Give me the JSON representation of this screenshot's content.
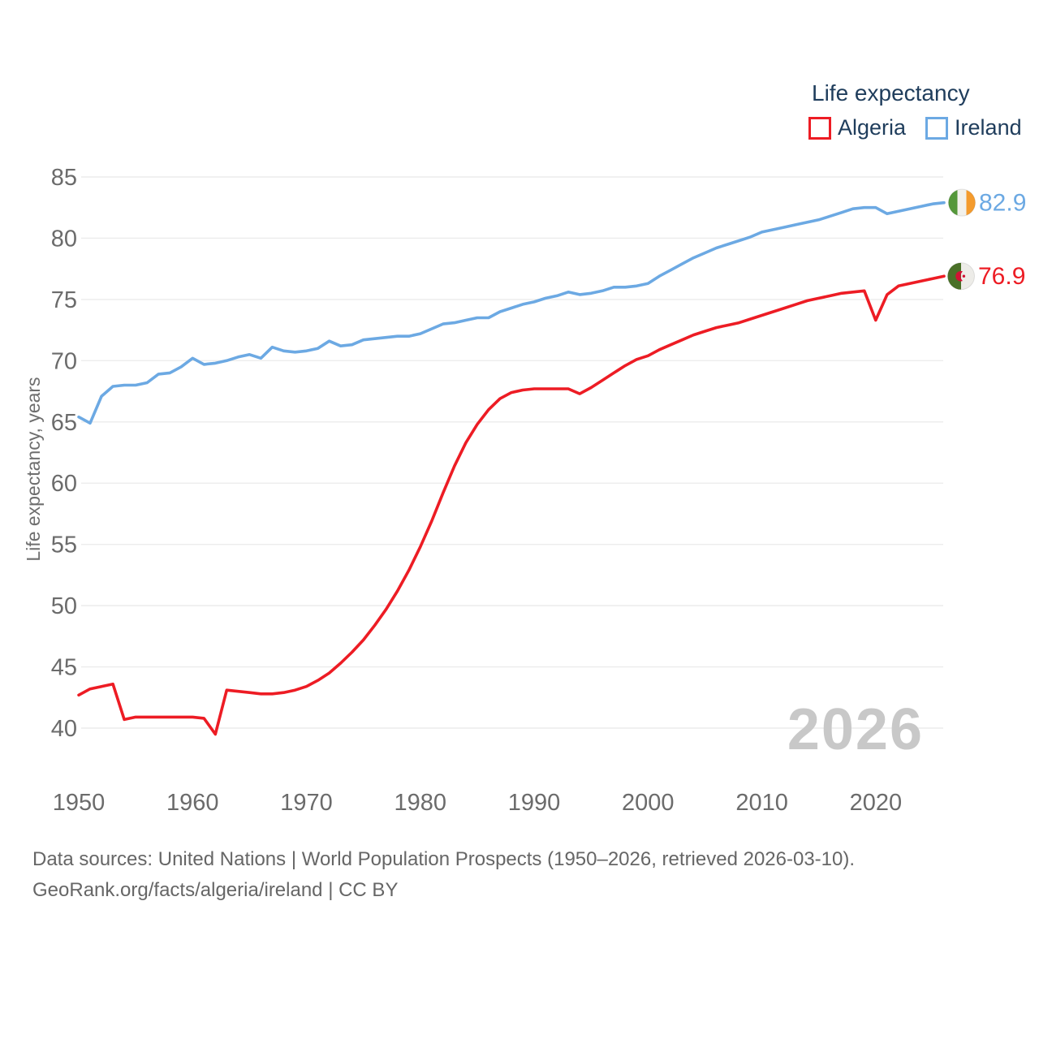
{
  "legend": {
    "title": "Life expectancy",
    "items": [
      {
        "label": "Algeria",
        "color": "#ed1c24"
      },
      {
        "label": "Ireland",
        "color": "#6ca9e3"
      }
    ]
  },
  "y_axis": {
    "title": "Life expectancy, years",
    "ticks": [
      40,
      45,
      50,
      55,
      60,
      65,
      70,
      75,
      80,
      85
    ]
  },
  "x_axis": {
    "ticks": [
      1950,
      1960,
      1970,
      1980,
      1990,
      2000,
      2010,
      2020
    ]
  },
  "watermark": "2026",
  "end_labels": {
    "ireland": {
      "value": "82.9",
      "color": "#6ca9e3"
    },
    "algeria": {
      "value": "76.9",
      "color": "#ed1c24"
    }
  },
  "flags": {
    "ireland": {
      "green": "#55983a",
      "white": "#f2f1ec",
      "orange": "#f49b2d"
    },
    "algeria": {
      "green": "#4a7028",
      "white": "#edece8",
      "red": "#d21034"
    }
  },
  "footer": {
    "line1": "Data sources: United Nations | World Population Prospects (1950–2026, retrieved 2026-03-10).",
    "line2": "GeoRank.org/facts/algeria/ireland | CC BY"
  },
  "chart_data": {
    "type": "line",
    "title": "Life expectancy",
    "ylabel": "Life expectancy, years",
    "xlabel": "",
    "x_range": [
      1950,
      2026
    ],
    "ylim": [
      40,
      85
    ],
    "grid": true,
    "legend_position": "top-right",
    "years": [
      1950,
      1951,
      1952,
      1953,
      1954,
      1955,
      1956,
      1957,
      1958,
      1959,
      1960,
      1961,
      1962,
      1963,
      1964,
      1965,
      1966,
      1967,
      1968,
      1969,
      1970,
      1971,
      1972,
      1973,
      1974,
      1975,
      1976,
      1977,
      1978,
      1979,
      1980,
      1981,
      1982,
      1983,
      1984,
      1985,
      1986,
      1987,
      1988,
      1989,
      1990,
      1991,
      1992,
      1993,
      1994,
      1995,
      1996,
      1997,
      1998,
      1999,
      2000,
      2001,
      2002,
      2003,
      2004,
      2005,
      2006,
      2007,
      2008,
      2009,
      2010,
      2011,
      2012,
      2013,
      2014,
      2015,
      2016,
      2017,
      2018,
      2019,
      2020,
      2021,
      2022,
      2023,
      2024,
      2025,
      2026
    ],
    "series": [
      {
        "name": "Algeria",
        "color": "#ed1c24",
        "final_value": 76.9,
        "values": [
          42.7,
          43.2,
          43.4,
          43.6,
          40.7,
          40.9,
          40.9,
          40.9,
          40.9,
          40.9,
          40.9,
          40.8,
          39.5,
          43.1,
          43.0,
          42.9,
          42.8,
          42.8,
          42.9,
          43.1,
          43.4,
          43.9,
          44.5,
          45.3,
          46.2,
          47.2,
          48.4,
          49.7,
          51.2,
          52.9,
          54.8,
          56.9,
          59.2,
          61.4,
          63.3,
          64.8,
          66.0,
          66.9,
          67.4,
          67.6,
          67.7,
          67.7,
          67.7,
          67.7,
          67.3,
          67.8,
          68.4,
          69.0,
          69.6,
          70.1,
          70.4,
          70.9,
          71.3,
          71.7,
          72.1,
          72.4,
          72.7,
          72.9,
          73.1,
          73.4,
          73.7,
          74.0,
          74.3,
          74.6,
          74.9,
          75.1,
          75.3,
          75.5,
          75.6,
          75.7,
          73.3,
          75.4,
          76.1,
          76.3,
          76.5,
          76.7,
          76.9
        ]
      },
      {
        "name": "Ireland",
        "color": "#6ca9e3",
        "final_value": 82.9,
        "values": [
          65.4,
          64.9,
          67.1,
          67.9,
          68.0,
          68.0,
          68.2,
          68.9,
          69.0,
          69.5,
          70.2,
          69.7,
          69.8,
          70.0,
          70.3,
          70.5,
          70.2,
          71.1,
          70.8,
          70.7,
          70.8,
          71.0,
          71.6,
          71.2,
          71.3,
          71.7,
          71.8,
          71.9,
          72.0,
          72.0,
          72.2,
          72.6,
          73.0,
          73.1,
          73.3,
          73.5,
          73.5,
          74.0,
          74.3,
          74.6,
          74.8,
          75.1,
          75.3,
          75.6,
          75.4,
          75.5,
          75.7,
          76.0,
          76.0,
          76.1,
          76.3,
          76.9,
          77.4,
          77.9,
          78.4,
          78.8,
          79.2,
          79.5,
          79.8,
          80.1,
          80.5,
          80.7,
          80.9,
          81.1,
          81.3,
          81.5,
          81.8,
          82.1,
          82.4,
          82.5,
          82.5,
          82.0,
          82.2,
          82.4,
          82.6,
          82.8,
          82.9
        ]
      }
    ]
  }
}
